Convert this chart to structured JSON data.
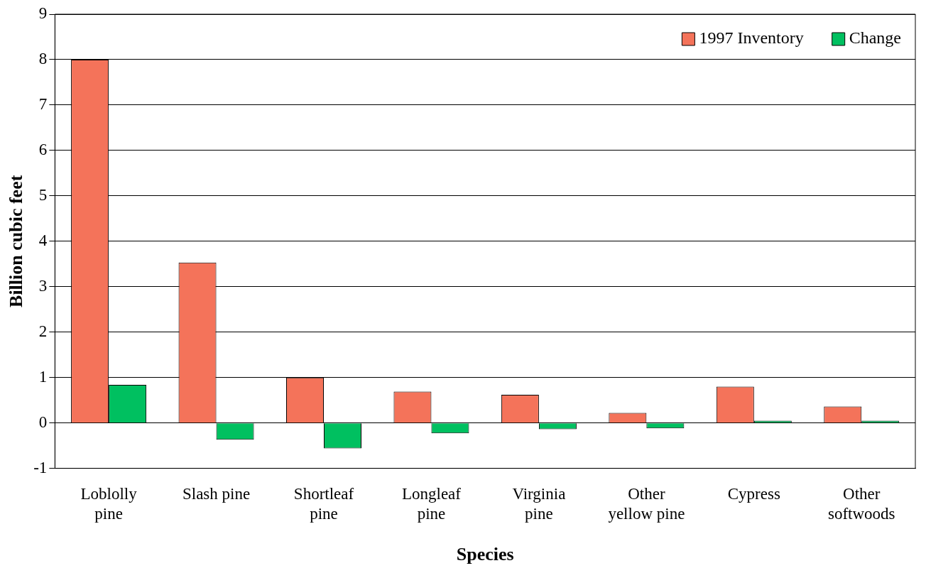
{
  "chart_data": {
    "type": "bar",
    "xlabel": "Species",
    "ylabel": "Billion cubic feet",
    "categories": [
      "Loblolly pine",
      "Slash pine",
      "Shortleaf pine",
      "Longleaf pine",
      "Virginia pine",
      "Other yellow pine",
      "Cypress",
      "Other softwoods"
    ],
    "series": [
      {
        "name": "1997 Inventory",
        "color": "#f4735a",
        "values": [
          8.0,
          3.53,
          1.0,
          0.69,
          0.62,
          0.22,
          0.8,
          0.36
        ]
      },
      {
        "name": "Change",
        "color": "#00c060",
        "values": [
          0.84,
          -0.37,
          -0.56,
          -0.23,
          -0.14,
          -0.12,
          0.05,
          0.05
        ]
      }
    ],
    "ylim": [
      -1,
      9
    ],
    "yticks": [
      -1,
      0,
      1,
      2,
      3,
      4,
      5,
      6,
      7,
      8,
      9
    ],
    "grid": "y",
    "legend": "top right"
  }
}
